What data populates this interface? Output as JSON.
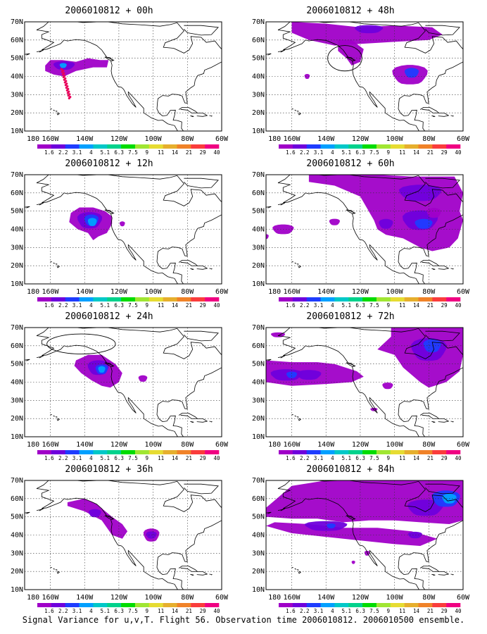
{
  "panels": [
    {
      "title": "2006010812 + 00h",
      "lead_hours": 0
    },
    {
      "title": "2006010812 + 48h",
      "lead_hours": 48
    },
    {
      "title": "2006010812 + 12h",
      "lead_hours": 12
    },
    {
      "title": "2006010812 + 60h",
      "lead_hours": 60
    },
    {
      "title": "2006010812 + 24h",
      "lead_hours": 24
    },
    {
      "title": "2006010812 + 72h",
      "lead_hours": 72
    },
    {
      "title": "2006010812 + 36h",
      "lead_hours": 36
    },
    {
      "title": "2006010812 + 84h",
      "lead_hours": 84
    }
  ],
  "map": {
    "lon_labels": [
      "180",
      "160W",
      "140W",
      "120W",
      "100W",
      "80W",
      "60W"
    ],
    "lat_labels": [
      "10N",
      "20N",
      "30N",
      "40N",
      "50N",
      "60N",
      "70N"
    ],
    "lon_range": [
      -175,
      -60
    ],
    "lat_range": [
      10,
      70
    ],
    "grid": "dotted"
  },
  "colorbar": {
    "labels": [
      "1.6",
      "2.2",
      "3.1",
      "4",
      "5.1",
      "6.3",
      "7.5",
      "9",
      "11",
      "14",
      "21",
      "29",
      "40"
    ],
    "colors": [
      "#a000c8",
      "#6e00dc",
      "#1e3cff",
      "#00a0ff",
      "#00c8c8",
      "#00d28c",
      "#00dc00",
      "#a0e632",
      "#e6dc32",
      "#e6af2d",
      "#f08228",
      "#fa3c3c",
      "#f00082"
    ]
  },
  "footer": "Signal Variance for u,v,T. Flight 56. Observation time 2006010812. 2006010500 ensemble."
}
